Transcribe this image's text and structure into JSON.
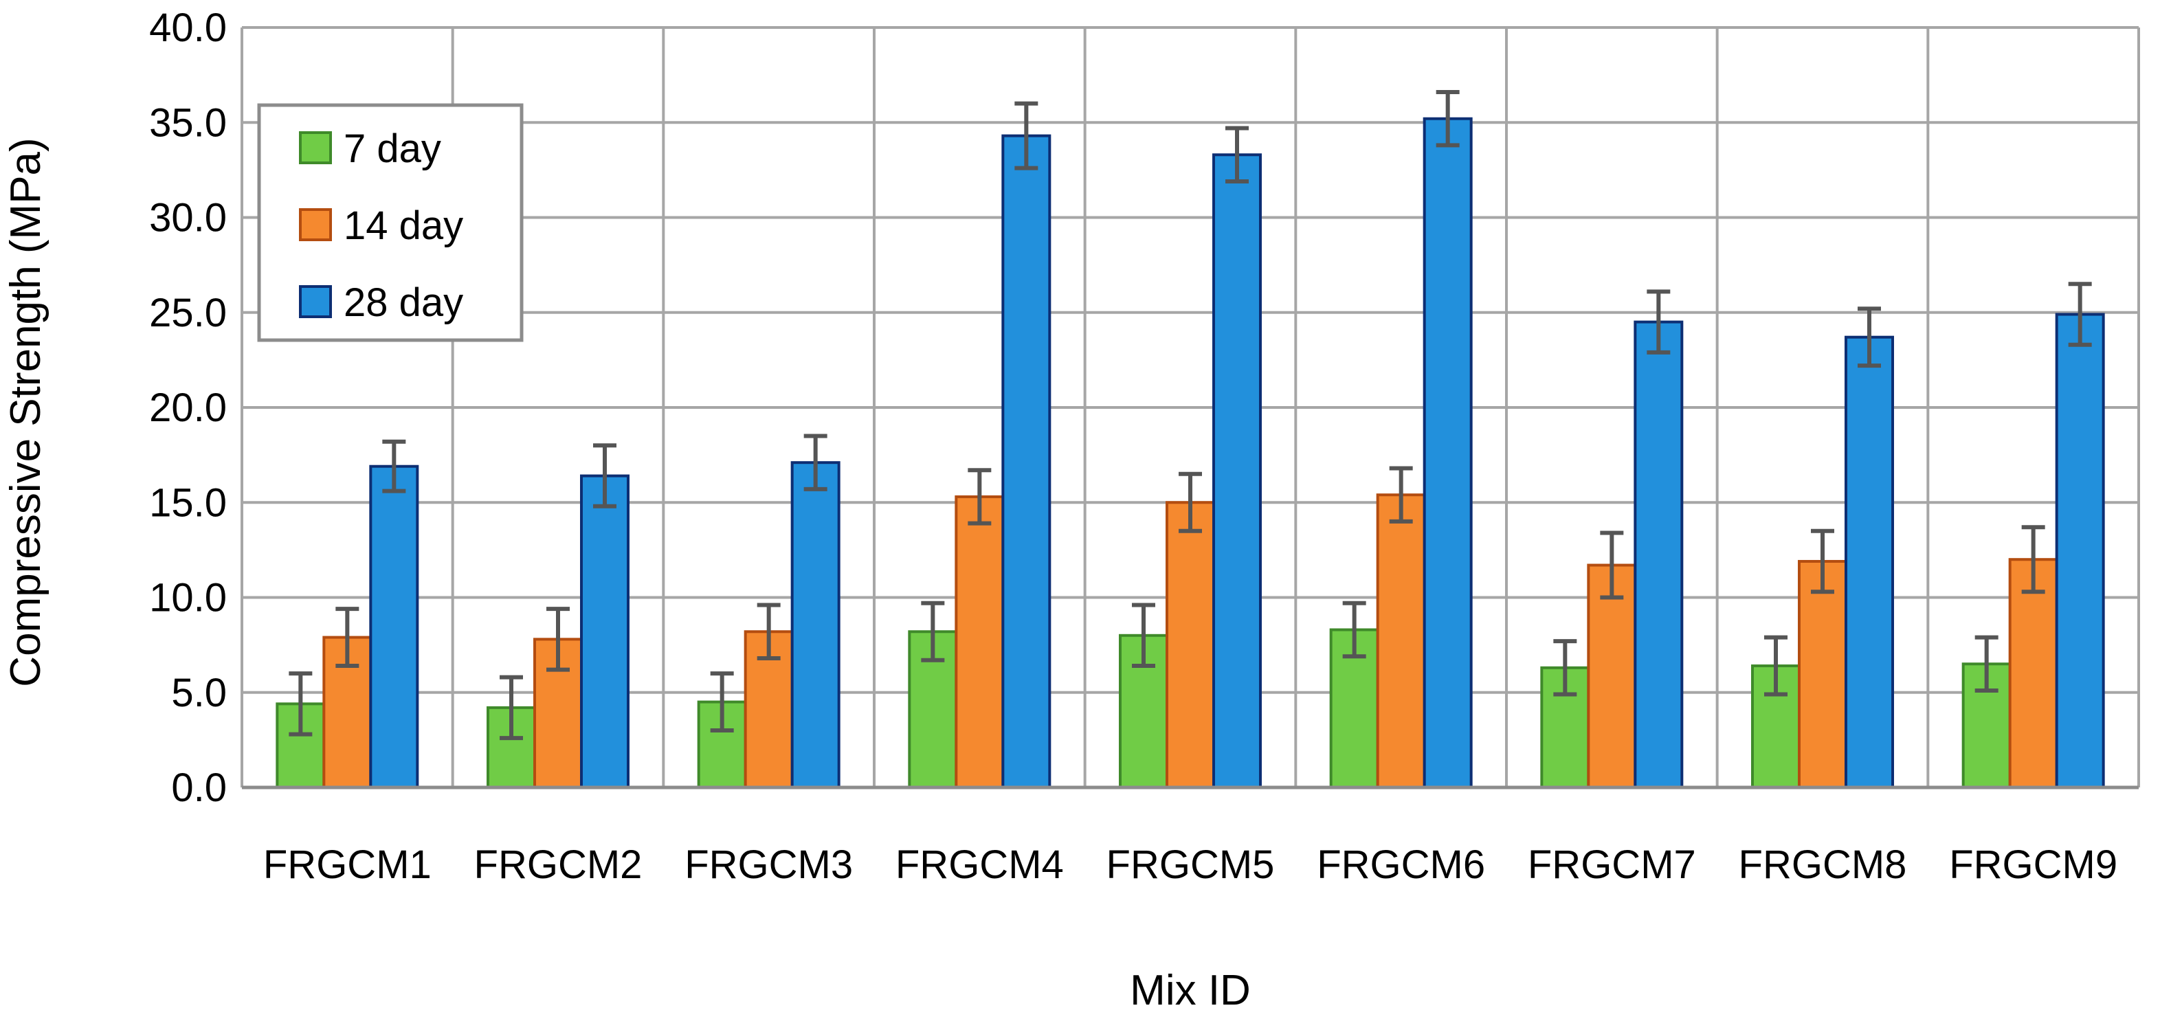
{
  "chart_data": {
    "type": "bar",
    "title": "",
    "xlabel": "Mix ID",
    "ylabel": "Compressive Strength (MPa)",
    "ylim": [
      0,
      40
    ],
    "yticks": [
      "0.0",
      "5.0",
      "10.0",
      "15.0",
      "20.0",
      "25.0",
      "30.0",
      "35.0",
      "40.0"
    ],
    "grid": true,
    "legend_position": "top-left",
    "categories": [
      "FRGCM1",
      "FRGCM2",
      "FRGCM3",
      "FRGCM4",
      "FRGCM5",
      "FRGCM6",
      "FRGCM7",
      "FRGCM8",
      "FRGCM9"
    ],
    "series": [
      {
        "name": "7 day",
        "color": "#70cc46",
        "edge_color": "#3f8a2a",
        "values": [
          4.4,
          4.2,
          4.5,
          8.2,
          8.0,
          8.3,
          6.3,
          6.4,
          6.5
        ],
        "errors": [
          1.6,
          1.6,
          1.5,
          1.5,
          1.6,
          1.4,
          1.4,
          1.5,
          1.4
        ]
      },
      {
        "name": "14 day",
        "color": "#f5892f",
        "edge_color": "#b44d10",
        "values": [
          7.9,
          7.8,
          8.2,
          15.3,
          15.0,
          15.4,
          11.7,
          11.9,
          12.0
        ],
        "errors": [
          1.5,
          1.6,
          1.4,
          1.4,
          1.5,
          1.4,
          1.7,
          1.6,
          1.7
        ]
      },
      {
        "name": "28 day",
        "color": "#2290dc",
        "edge_color": "#0d2e73",
        "values": [
          16.9,
          16.4,
          17.1,
          34.3,
          33.3,
          35.2,
          24.5,
          23.7,
          24.9
        ],
        "errors": [
          1.3,
          1.6,
          1.4,
          1.7,
          1.4,
          1.4,
          1.6,
          1.5,
          1.6
        ]
      }
    ],
    "error_bar_color": "#555555"
  }
}
